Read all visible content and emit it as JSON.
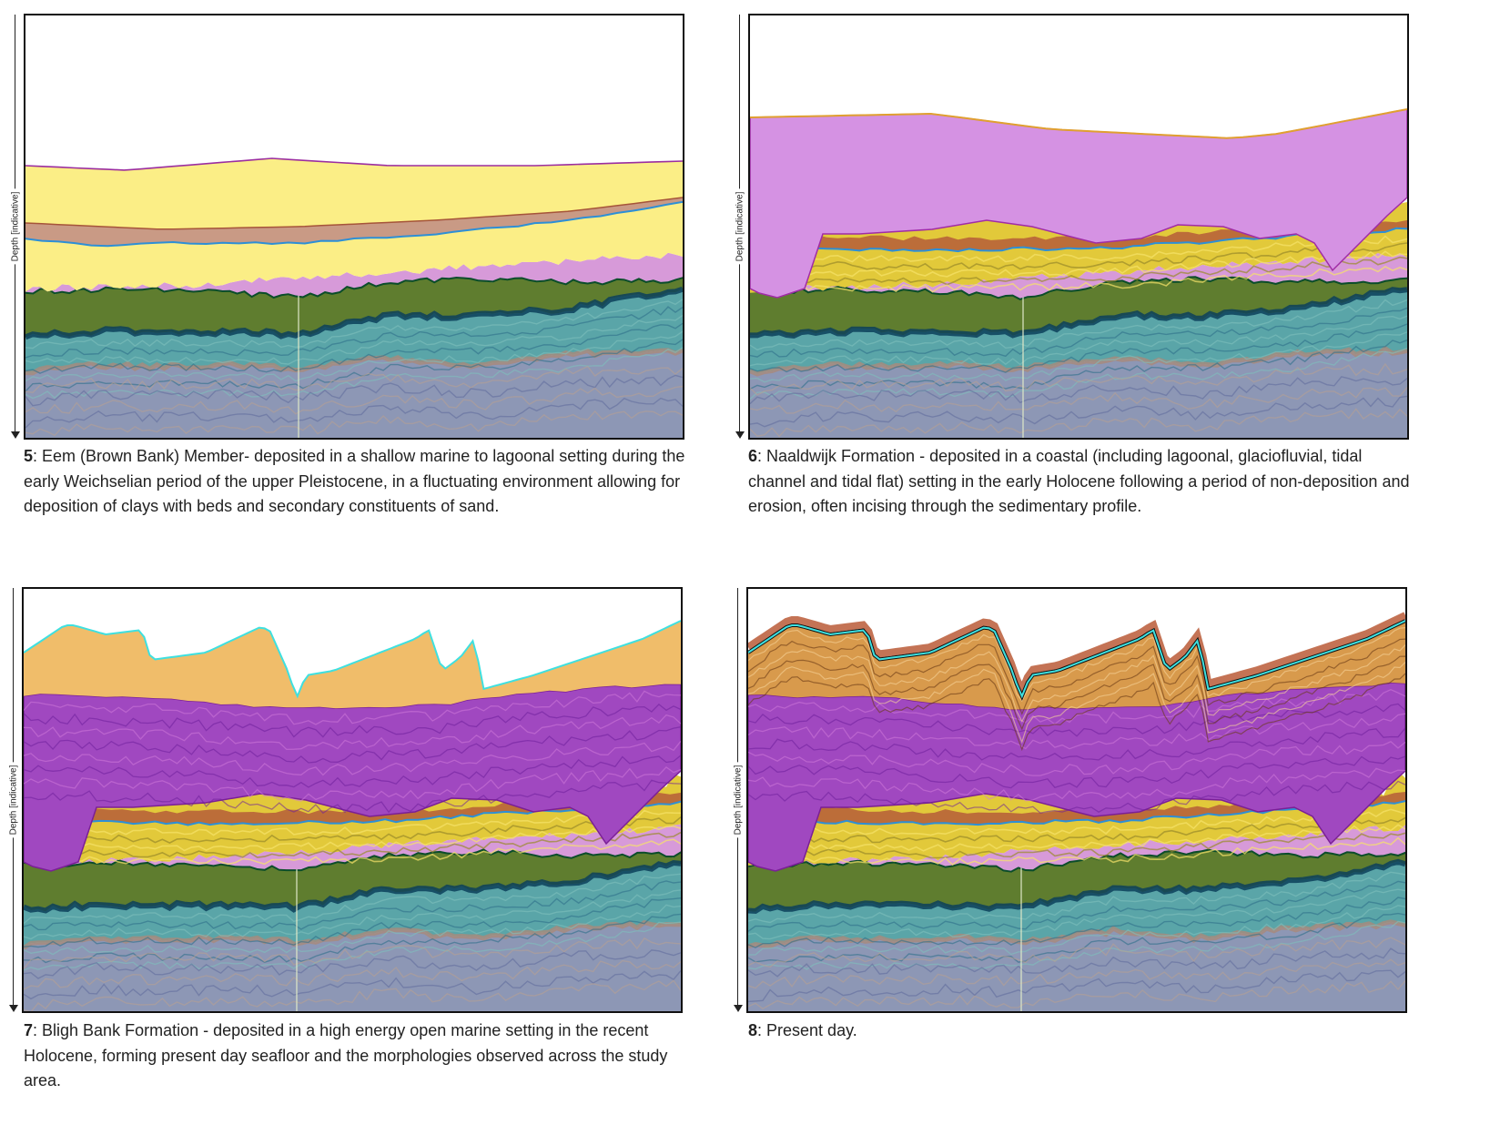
{
  "axis_label": "Depth [indicative]",
  "panels": [
    {
      "number": "5",
      "caption": ": Eem (Brown Bank) Member- deposited in a shallow marine to lagoonal setting during the early Weichselian period of the upper Pleistocene, in a fluctuating environment allowing for deposition of clays with beds and secondary constituents of sand."
    },
    {
      "number": "6",
      "caption": ": Naaldwijk Formation - deposited in a coastal (including lagoonal, glaciofluvial, tidal channel and tidal flat) setting in the early Holocene following a period of non-deposition and erosion, often incising through the sedimentary profile."
    },
    {
      "number": "7",
      "caption": ": Bligh Bank Formation - deposited in a high energy open marine setting in the recent Holocene, forming present day seafloor and the morphologies observed across the study area."
    },
    {
      "number": "8",
      "caption": ": Present day."
    }
  ],
  "colors": {
    "basement": "#8d97b5",
    "teal": "#5aa5a8",
    "green": "#5f7d2f",
    "pink": "#d79ad9",
    "yellow_pale": "#fbee86",
    "brown_clay": "#c99a85",
    "naaldwijk": "#d592e3",
    "yellow_seismic": "#e2c93a",
    "bligh_fill": "#f0bd6a",
    "seismic_purple": "#a048c0",
    "present_orange": "#d89a4c"
  }
}
